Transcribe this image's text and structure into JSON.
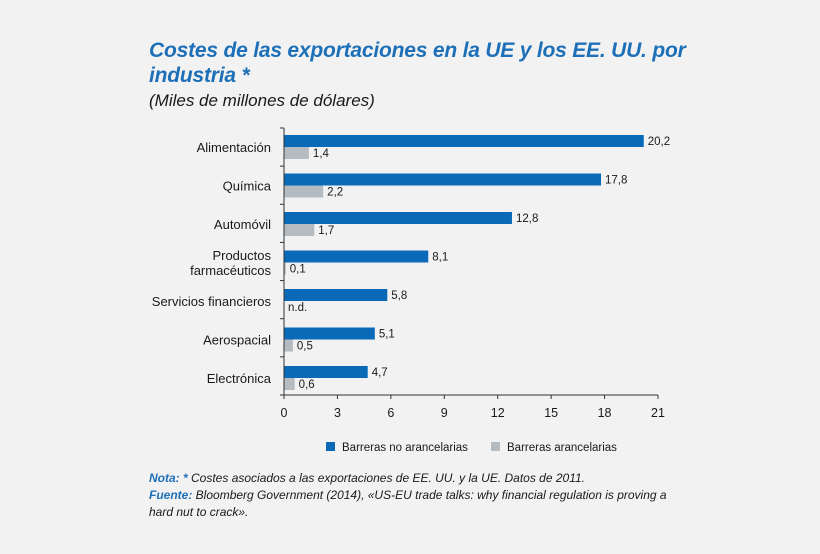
{
  "title": "Costes de las exportaciones en la UE y los EE. UU. por industria *",
  "subtitle": "(Miles de millones de dólares)",
  "notes": {
    "nota_label": "Nota: *",
    "nota_text": " Costes asociados a las exportaciones de EE. UU. y la UE. Datos de 2011.",
    "fuente_label": "Fuente:",
    "fuente_text": " Bloomberg Government (2014), «US-EU trade talks: why financial regulation is proving a hard nut to crack»."
  },
  "colors": {
    "no_arancelarias": "#0a6ab8",
    "arancelarias": "#b4bcc2",
    "title": "#1d70b8"
  },
  "chart_data": {
    "type": "bar",
    "orientation": "horizontal",
    "categories": [
      [
        "Alimentación"
      ],
      [
        "Química"
      ],
      [
        "Automóvil"
      ],
      [
        "Productos",
        "farmacéuticos"
      ],
      [
        "Servicios financieros"
      ],
      [
        "Aerospacial"
      ],
      [
        "Electrónica"
      ]
    ],
    "series": [
      {
        "name": "Barreras no arancelarias",
        "values": [
          20.2,
          17.8,
          12.8,
          8.1,
          5.8,
          5.1,
          4.7
        ],
        "labels": [
          "20,2",
          "17,8",
          "12,8",
          "8,1",
          "5,8",
          "5,1",
          "4,7"
        ]
      },
      {
        "name": "Barreras arancelarias",
        "values": [
          1.4,
          2.2,
          1.7,
          0.1,
          null,
          0.5,
          0.6
        ],
        "labels": [
          "1,4",
          "2,2",
          "1,7",
          "0,1",
          "n.d.",
          "0,5",
          "0,6"
        ]
      }
    ],
    "xlim": [
      0,
      21
    ],
    "xticks": [
      0,
      3,
      6,
      9,
      12,
      15,
      18,
      21
    ],
    "legend_position": "bottom",
    "grid": false
  }
}
